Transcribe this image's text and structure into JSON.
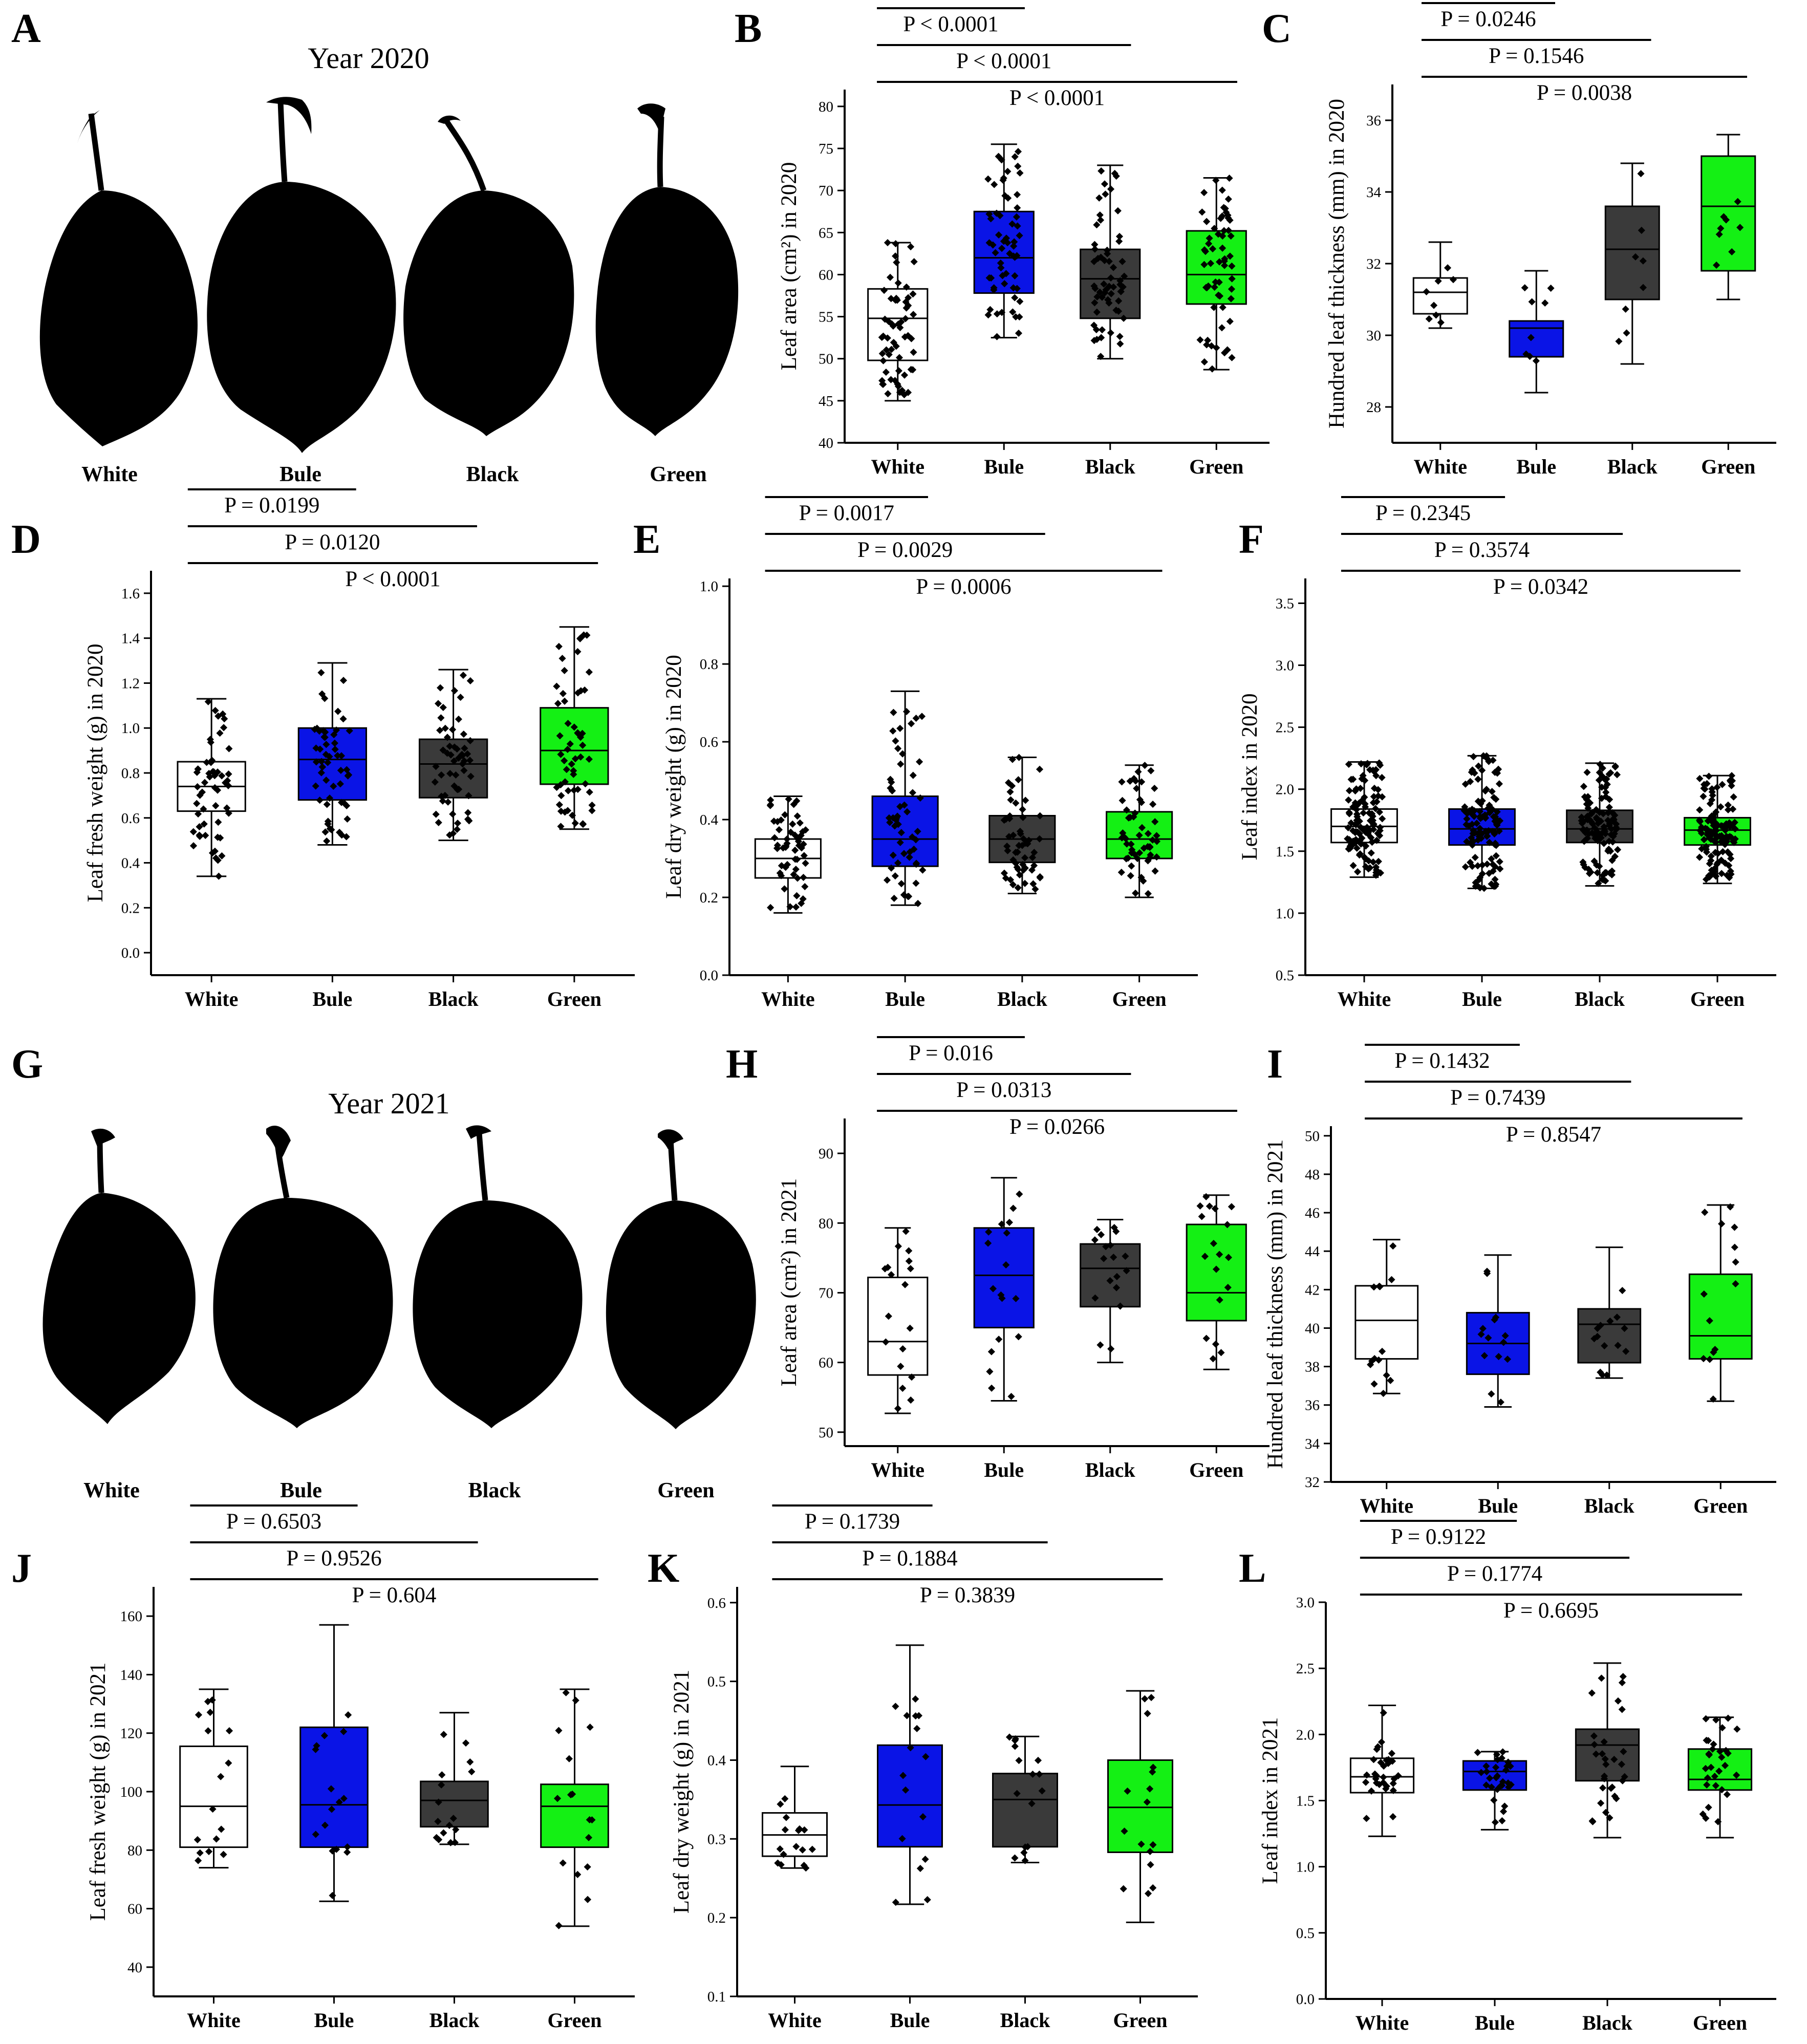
{
  "leaf_panels": [
    {
      "letter": "A",
      "title": "Year 2020",
      "labels": [
        "White",
        "Bule",
        "Black",
        "Green"
      ]
    },
    {
      "letter": "G",
      "title": "Year 2021",
      "labels": [
        "White",
        "Bule",
        "Black",
        "Green"
      ]
    }
  ],
  "colors": {
    "White": "#ffffff",
    "Bule": "#0a14e6",
    "Black": "#3a3a3a",
    "Green": "#14f014"
  },
  "chart_data": [
    {
      "letter": "B",
      "type": "box",
      "ylabel": "Leaf area (cm²) in 2020",
      "ylim": [
        40,
        82
      ],
      "yticks": [
        40,
        45,
        50,
        55,
        60,
        65,
        70,
        75,
        80
      ],
      "ytick_labels": [
        "40",
        "45",
        "50",
        "55",
        "60",
        "65",
        "70",
        "75",
        "80"
      ],
      "categories": [
        "White",
        "Bule",
        "Black",
        "Green"
      ],
      "boxes": [
        {
          "min": 45,
          "q1": 49.8,
          "median": 54.8,
          "q3": 58.3,
          "max": 63.8
        },
        {
          "min": 52.5,
          "q1": 57.8,
          "median": 62,
          "q3": 67.5,
          "max": 75.5
        },
        {
          "min": 50,
          "q1": 54.8,
          "median": 59.5,
          "q3": 63,
          "max": 73
        },
        {
          "min": 48.7,
          "q1": 56.5,
          "median": 60,
          "q3": 65.2,
          "max": 71.5
        }
      ],
      "points_per_group": 60,
      "comparisons": [
        {
          "text": "P < 0.0001",
          "target": "Bule"
        },
        {
          "text": "P < 0.0001",
          "target": "Black"
        },
        {
          "text": "P < 0.0001",
          "target": "Green"
        }
      ]
    },
    {
      "letter": "C",
      "type": "box",
      "ylabel": "Hundred leaf thickness (mm) in 2020",
      "ylim": [
        27,
        37
      ],
      "yticks": [
        28,
        30,
        32,
        34,
        36
      ],
      "ytick_labels": [
        "28",
        "30",
        "32",
        "34",
        "36"
      ],
      "categories": [
        "White",
        "Bule",
        "Black",
        "Green"
      ],
      "boxes": [
        {
          "min": 30.2,
          "q1": 30.6,
          "median": 31.2,
          "q3": 31.6,
          "max": 32.6
        },
        {
          "min": 28.4,
          "q1": 29.4,
          "median": 30.2,
          "q3": 30.4,
          "max": 31.8
        },
        {
          "min": 29.2,
          "q1": 31,
          "median": 32.4,
          "q3": 33.6,
          "max": 34.8
        },
        {
          "min": 31,
          "q1": 31.8,
          "median": 33.6,
          "q3": 35,
          "max": 35.6
        }
      ],
      "points_per_group": 8,
      "comparisons": [
        {
          "text": "P = 0.0246",
          "target": "Bule"
        },
        {
          "text": "P = 0.1546",
          "target": "Black"
        },
        {
          "text": "P = 0.0038",
          "target": "Green"
        }
      ]
    },
    {
      "letter": "D",
      "type": "box",
      "ylabel": "Leaf fresh weight (g) in 2020",
      "ylim": [
        -0.1,
        1.7
      ],
      "yticks": [
        0,
        0.2,
        0.4,
        0.6,
        0.8,
        1.0,
        1.2,
        1.4,
        1.6
      ],
      "ytick_labels": [
        "0.0",
        "0.2",
        "0.4",
        "0.6",
        "0.8",
        "1.0",
        "1.2",
        "1.4",
        "1.6"
      ],
      "categories": [
        "White",
        "Bule",
        "Black",
        "Green"
      ],
      "boxes": [
        {
          "min": 0.34,
          "q1": 0.63,
          "median": 0.74,
          "q3": 0.85,
          "max": 1.13
        },
        {
          "min": 0.48,
          "q1": 0.68,
          "median": 0.86,
          "q3": 1.0,
          "max": 1.29
        },
        {
          "min": 0.5,
          "q1": 0.69,
          "median": 0.84,
          "q3": 0.95,
          "max": 1.26
        },
        {
          "min": 0.55,
          "q1": 0.75,
          "median": 0.9,
          "q3": 1.09,
          "max": 1.45
        }
      ],
      "points_per_group": 55,
      "comparisons": [
        {
          "text": "P = 0.0199",
          "target": "Bule"
        },
        {
          "text": "P = 0.0120",
          "target": "Black"
        },
        {
          "text": "P < 0.0001",
          "target": "Green"
        }
      ]
    },
    {
      "letter": "E",
      "type": "box",
      "ylabel": "Leaf dry weight (g) in 2020",
      "ylim": [
        0,
        1.02
      ],
      "yticks": [
        0,
        0.2,
        0.4,
        0.6,
        0.8,
        1.0
      ],
      "ytick_labels": [
        "0.0",
        "0.2",
        "0.4",
        "0.6",
        "0.8",
        "1.0"
      ],
      "categories": [
        "White",
        "Bule",
        "Black",
        "Green"
      ],
      "boxes": [
        {
          "min": 0.16,
          "q1": 0.25,
          "median": 0.3,
          "q3": 0.35,
          "max": 0.46
        },
        {
          "min": 0.18,
          "q1": 0.28,
          "median": 0.35,
          "q3": 0.46,
          "max": 0.73
        },
        {
          "min": 0.21,
          "q1": 0.29,
          "median": 0.35,
          "q3": 0.41,
          "max": 0.56
        },
        {
          "min": 0.2,
          "q1": 0.3,
          "median": 0.35,
          "q3": 0.42,
          "max": 0.54
        }
      ],
      "points_per_group": 55,
      "comparisons": [
        {
          "text": "P = 0.0017",
          "target": "Bule"
        },
        {
          "text": "P = 0.0029",
          "target": "Black"
        },
        {
          "text": "P = 0.0006",
          "target": "Green"
        }
      ]
    },
    {
      "letter": "F",
      "type": "box",
      "ylabel": "Leaf index in 2020",
      "ylim": [
        0.5,
        3.7
      ],
      "yticks": [
        0.5,
        1.0,
        1.5,
        2.0,
        2.5,
        3.0,
        3.5
      ],
      "ytick_labels": [
        "0.5",
        "1.0",
        "1.5",
        "2.0",
        "2.5",
        "3.0",
        "3.5"
      ],
      "categories": [
        "White",
        "Bule",
        "Black",
        "Green"
      ],
      "boxes": [
        {
          "min": 1.29,
          "q1": 1.57,
          "median": 1.7,
          "q3": 1.84,
          "max": 2.22
        },
        {
          "min": 1.2,
          "q1": 1.55,
          "median": 1.68,
          "q3": 1.84,
          "max": 2.27
        },
        {
          "min": 1.22,
          "q1": 1.57,
          "median": 1.68,
          "q3": 1.83,
          "max": 2.21
        },
        {
          "min": 1.24,
          "q1": 1.55,
          "median": 1.67,
          "q3": 1.77,
          "max": 2.11
        }
      ],
      "points_per_group": 120,
      "comparisons": [
        {
          "text": "P = 0.2345",
          "target": "Bule"
        },
        {
          "text": "P = 0.3574",
          "target": "Black"
        },
        {
          "text": "P = 0.0342",
          "target": "Green"
        }
      ]
    },
    {
      "letter": "H",
      "type": "box",
      "ylabel": "Leaf area (cm²) in 2021",
      "ylim": [
        48,
        95
      ],
      "yticks": [
        50,
        60,
        70,
        80,
        90
      ],
      "ytick_labels": [
        "50",
        "60",
        "70",
        "80",
        "90"
      ],
      "categories": [
        "White",
        "Bule",
        "Black",
        "Green"
      ],
      "boxes": [
        {
          "min": 52.7,
          "q1": 58.2,
          "median": 63,
          "q3": 72.2,
          "max": 79.3
        },
        {
          "min": 54.5,
          "q1": 65,
          "median": 72.5,
          "q3": 79.3,
          "max": 86.5
        },
        {
          "min": 60,
          "q1": 68,
          "median": 73.5,
          "q3": 77,
          "max": 80.5
        },
        {
          "min": 59,
          "q1": 66,
          "median": 70,
          "q3": 79.8,
          "max": 84
        }
      ],
      "points_per_group": 18,
      "comparisons": [
        {
          "text": "P = 0.016",
          "target": "Bule"
        },
        {
          "text": "P = 0.0313",
          "target": "Black"
        },
        {
          "text": "P = 0.0266",
          "target": "Green"
        }
      ]
    },
    {
      "letter": "I",
      "type": "box",
      "ylabel": "Hundred leaf thickness (mm) in 2021",
      "ylim": [
        32,
        50.5
      ],
      "yticks": [
        32,
        34,
        36,
        38,
        40,
        42,
        44,
        46,
        48,
        50
      ],
      "ytick_labels": [
        "32",
        "34",
        "36",
        "38",
        "40",
        "42",
        "44",
        "46",
        "48",
        "50"
      ],
      "categories": [
        "White",
        "Bule",
        "Black",
        "Green"
      ],
      "boxes": [
        {
          "min": 36.6,
          "q1": 38.4,
          "median": 40.4,
          "q3": 42.2,
          "max": 44.6
        },
        {
          "min": 35.9,
          "q1": 37.6,
          "median": 39.2,
          "q3": 40.8,
          "max": 43.8
        },
        {
          "min": 37.4,
          "q1": 38.2,
          "median": 40.2,
          "q3": 41,
          "max": 44.2
        },
        {
          "min": 36.2,
          "q1": 38.4,
          "median": 39.6,
          "q3": 42.8,
          "max": 46.4
        }
      ],
      "points_per_group": 14,
      "comparisons": [
        {
          "text": "P = 0.1432",
          "target": "Bule"
        },
        {
          "text": "P = 0.7439",
          "target": "Black"
        },
        {
          "text": "P = 0.8547",
          "target": "Green"
        }
      ]
    },
    {
      "letter": "J",
      "type": "box",
      "ylabel": "Leaf fresh weight (g) in 2021",
      "ylim": [
        30,
        170
      ],
      "yticks": [
        40,
        60,
        80,
        100,
        120,
        140,
        160
      ],
      "ytick_labels": [
        "40",
        "60",
        "80",
        "100",
        "120",
        "140",
        "160"
      ],
      "categories": [
        "White",
        "Bule",
        "Black",
        "Green"
      ],
      "boxes": [
        {
          "min": 74,
          "q1": 81,
          "median": 95,
          "q3": 115.5,
          "max": 135
        },
        {
          "min": 62.5,
          "q1": 81,
          "median": 95.5,
          "q3": 122,
          "max": 157
        },
        {
          "min": 82,
          "q1": 88,
          "median": 97,
          "q3": 103.5,
          "max": 127
        },
        {
          "min": 54,
          "q1": 81,
          "median": 95,
          "q3": 102.5,
          "max": 135
        }
      ],
      "points_per_group": 16,
      "comparisons": [
        {
          "text": "P = 0.6503",
          "target": "Bule"
        },
        {
          "text": "P = 0.9526",
          "target": "Black"
        },
        {
          "text": "P = 0.604",
          "target": "Green"
        }
      ]
    },
    {
      "letter": "K",
      "type": "box",
      "ylabel": "Leaf dry weight (g) in 2021",
      "ylim": [
        0.1,
        0.62
      ],
      "yticks": [
        0.1,
        0.2,
        0.3,
        0.4,
        0.5,
        0.6
      ],
      "ytick_labels": [
        "0.1",
        "0.2",
        "0.3",
        "0.4",
        "0.5",
        "0.6"
      ],
      "categories": [
        "White",
        "Bule",
        "Black",
        "Green"
      ],
      "boxes": [
        {
          "min": 0.263,
          "q1": 0.278,
          "median": 0.305,
          "q3": 0.333,
          "max": 0.392
        },
        {
          "min": 0.217,
          "q1": 0.29,
          "median": 0.343,
          "q3": 0.419,
          "max": 0.546
        },
        {
          "min": 0.27,
          "q1": 0.29,
          "median": 0.35,
          "q3": 0.383,
          "max": 0.43
        },
        {
          "min": 0.194,
          "q1": 0.283,
          "median": 0.34,
          "q3": 0.4,
          "max": 0.488
        }
      ],
      "points_per_group": 16,
      "comparisons": [
        {
          "text": "P = 0.1739",
          "target": "Bule"
        },
        {
          "text": "P = 0.1884",
          "target": "Black"
        },
        {
          "text": "P = 0.3839",
          "target": "Green"
        }
      ]
    },
    {
      "letter": "L",
      "type": "box",
      "ylabel": "Leaf index in 2021",
      "ylim": [
        0,
        3.0
      ],
      "yticks": [
        0,
        0.5,
        1.0,
        1.5,
        2.0,
        2.5,
        3.0
      ],
      "ytick_labels": [
        "0.0",
        "0.5",
        "1.0",
        "1.5",
        "2.0",
        "2.5",
        "3.0"
      ],
      "categories": [
        "White",
        "Bule",
        "Black",
        "Green"
      ],
      "boxes": [
        {
          "min": 1.23,
          "q1": 1.56,
          "median": 1.68,
          "q3": 1.82,
          "max": 2.22
        },
        {
          "min": 1.28,
          "q1": 1.58,
          "median": 1.72,
          "q3": 1.8,
          "max": 1.87
        },
        {
          "min": 1.22,
          "q1": 1.65,
          "median": 1.92,
          "q3": 2.04,
          "max": 2.54
        },
        {
          "min": 1.22,
          "q1": 1.58,
          "median": 1.66,
          "q3": 1.89,
          "max": 2.13
        }
      ],
      "points_per_group": 30,
      "comparisons": [
        {
          "text": "P = 0.9122",
          "target": "Bule"
        },
        {
          "text": "P = 0.1774",
          "target": "Black"
        },
        {
          "text": "P = 0.6695",
          "target": "Green"
        }
      ]
    }
  ]
}
